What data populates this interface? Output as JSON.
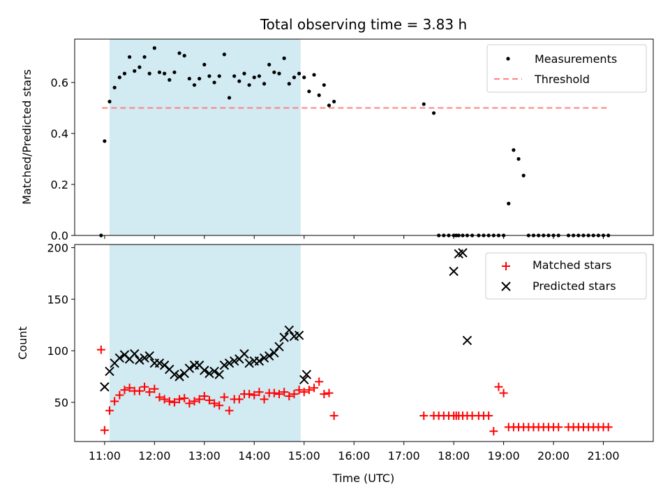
{
  "chart_data": [
    {
      "type": "scatter",
      "panel": "top",
      "title": "Total observing time = 3.83 h",
      "ylabel": "Matched/Predicted stars",
      "xlabel": "",
      "ylim": [
        0,
        0.77
      ],
      "yticks": [
        0.0,
        0.2,
        0.4,
        0.6
      ],
      "ytick_labels": [
        "0.0",
        "0.2",
        "0.4",
        "0.6"
      ],
      "shaded_interval_hours": [
        11.1,
        14.93
      ],
      "shade_color": "#add8e6",
      "legend": {
        "placement": "top-right",
        "entries": [
          "Measurements",
          "Threshold"
        ]
      },
      "series": [
        {
          "name": "Measurements",
          "marker": "dot",
          "color": "#000000",
          "x": [
            10.93,
            11.0,
            11.1,
            11.2,
            11.3,
            11.4,
            11.5,
            11.6,
            11.7,
            11.8,
            11.9,
            12.0,
            12.1,
            12.2,
            12.3,
            12.4,
            12.5,
            12.6,
            12.7,
            12.8,
            12.9,
            13.0,
            13.1,
            13.2,
            13.3,
            13.4,
            13.5,
            13.6,
            13.7,
            13.8,
            13.9,
            14.0,
            14.1,
            14.2,
            14.3,
            14.4,
            14.5,
            14.6,
            14.7,
            14.8,
            14.9,
            15.0,
            15.1,
            15.2,
            15.3,
            15.4,
            15.5,
            15.6,
            17.4,
            17.6,
            17.7,
            17.8,
            17.9,
            18.0,
            18.05,
            18.1,
            18.18,
            18.27,
            18.37,
            18.5,
            18.6,
            18.7,
            18.8,
            18.9,
            19.0,
            19.1,
            19.2,
            19.3,
            19.4,
            19.5,
            19.6,
            19.7,
            19.8,
            19.9,
            20.0,
            20.1,
            20.3,
            20.4,
            20.5,
            20.6,
            20.7,
            20.8,
            20.9,
            21.0,
            21.1
          ],
          "y": [
            0.0,
            0.37,
            0.525,
            0.58,
            0.62,
            0.635,
            0.7,
            0.645,
            0.66,
            0.7,
            0.635,
            0.735,
            0.64,
            0.635,
            0.61,
            0.64,
            0.715,
            0.705,
            0.615,
            0.59,
            0.615,
            0.67,
            0.625,
            0.6,
            0.625,
            0.71,
            0.54,
            0.625,
            0.605,
            0.635,
            0.59,
            0.62,
            0.625,
            0.595,
            0.67,
            0.64,
            0.635,
            0.695,
            0.595,
            0.62,
            0.635,
            0.62,
            0.565,
            0.63,
            0.55,
            0.59,
            0.51,
            0.525,
            0.515,
            0.48,
            0.0,
            0.0,
            0.0,
            0.0,
            0.0,
            0.0,
            0.0,
            0.0,
            0.0,
            0.0,
            0.0,
            0.0,
            0.0,
            0.0,
            0.0,
            0.125,
            0.335,
            0.3,
            0.235,
            0.0,
            0.0,
            0.0,
            0.0,
            0.0,
            0.0,
            0.0,
            0.0,
            0.0,
            0.0,
            0.0,
            0.0,
            0.0,
            0.0,
            0.0,
            0.0
          ]
        },
        {
          "name": "Threshold",
          "marker": "dashed-line",
          "color": "#ff7f7f",
          "x": [
            10.95,
            21.1
          ],
          "y": [
            0.5,
            0.5
          ]
        }
      ]
    },
    {
      "type": "scatter",
      "panel": "bottom",
      "title": "",
      "ylabel": "Count",
      "xlabel": "Time (UTC)",
      "ylim": [
        12,
        203
      ],
      "yticks": [
        50,
        100,
        150,
        200
      ],
      "ytick_labels": [
        "50",
        "100",
        "150",
        "200"
      ],
      "xlim": [
        10.4,
        22.0
      ],
      "xticks": [
        11,
        12,
        13,
        14,
        15,
        16,
        17,
        18,
        19,
        20,
        21
      ],
      "xtick_labels": [
        "11:00",
        "12:00",
        "13:00",
        "14:00",
        "15:00",
        "16:00",
        "17:00",
        "18:00",
        "19:00",
        "20:00",
        "21:00"
      ],
      "shaded_interval_hours": [
        11.1,
        14.93
      ],
      "shade_color": "#add8e6",
      "legend": {
        "placement": "top-right",
        "entries": [
          "Matched stars",
          "Predicted stars"
        ]
      },
      "series": [
        {
          "name": "Matched stars",
          "marker": "plus",
          "color": "#ff0000",
          "x": [
            10.93,
            11.0,
            11.1,
            11.2,
            11.3,
            11.4,
            11.5,
            11.6,
            11.7,
            11.8,
            11.9,
            12.0,
            12.1,
            12.2,
            12.3,
            12.4,
            12.5,
            12.6,
            12.7,
            12.8,
            12.9,
            13.0,
            13.1,
            13.2,
            13.3,
            13.4,
            13.5,
            13.6,
            13.7,
            13.8,
            13.9,
            14.0,
            14.1,
            14.2,
            14.3,
            14.4,
            14.5,
            14.6,
            14.7,
            14.8,
            14.9,
            15.0,
            15.1,
            15.2,
            15.3,
            15.4,
            15.5,
            15.6,
            17.4,
            17.6,
            17.7,
            17.8,
            17.9,
            18.0,
            18.05,
            18.1,
            18.18,
            18.27,
            18.37,
            18.5,
            18.6,
            18.7,
            18.8,
            18.9,
            19.0,
            19.1,
            19.2,
            19.3,
            19.4,
            19.5,
            19.6,
            19.7,
            19.8,
            19.9,
            20.0,
            20.1,
            20.3,
            20.4,
            20.5,
            20.6,
            20.7,
            20.8,
            20.9,
            21.0,
            21.1
          ],
          "y": [
            101,
            23,
            42,
            51,
            57,
            62,
            64,
            61,
            61,
            65,
            60,
            63,
            55,
            53,
            51,
            50,
            53,
            54,
            49,
            51,
            53,
            56,
            52,
            49,
            47,
            55,
            42,
            53,
            53,
            58,
            58,
            57,
            60,
            53,
            59,
            59,
            58,
            60,
            56,
            58,
            62,
            60,
            62,
            64,
            70,
            58,
            59,
            37,
            37,
            37,
            37,
            37,
            37,
            37,
            37,
            37,
            37,
            37,
            37,
            37,
            37,
            37,
            22,
            65,
            59,
            26,
            26,
            26,
            26,
            26,
            26,
            26,
            26,
            26,
            26,
            26,
            26,
            26,
            26,
            26,
            26,
            26,
            26,
            26,
            26
          ]
        },
        {
          "name": "Predicted stars",
          "marker": "x",
          "color": "#000000",
          "x": [
            11.0,
            11.1,
            11.2,
            11.3,
            11.4,
            11.5,
            11.6,
            11.7,
            11.8,
            11.9,
            12.0,
            12.1,
            12.2,
            12.3,
            12.4,
            12.5,
            12.6,
            12.7,
            12.8,
            12.9,
            13.0,
            13.1,
            13.2,
            13.3,
            13.4,
            13.5,
            13.6,
            13.7,
            13.8,
            13.9,
            14.0,
            14.1,
            14.2,
            14.3,
            14.4,
            14.5,
            14.6,
            14.7,
            14.8,
            14.9,
            15.0,
            15.05,
            18.0,
            18.1,
            18.18,
            18.27
          ],
          "y": [
            65,
            80,
            88,
            93,
            96,
            92,
            97,
            91,
            93,
            95,
            88,
            88,
            86,
            82,
            77,
            75,
            78,
            83,
            86,
            86,
            81,
            78,
            80,
            77,
            86,
            88,
            90,
            92,
            97,
            88,
            90,
            90,
            93,
            95,
            98,
            104,
            113,
            120,
            114,
            115,
            72,
            77,
            177,
            194,
            195,
            110
          ]
        }
      ]
    }
  ]
}
